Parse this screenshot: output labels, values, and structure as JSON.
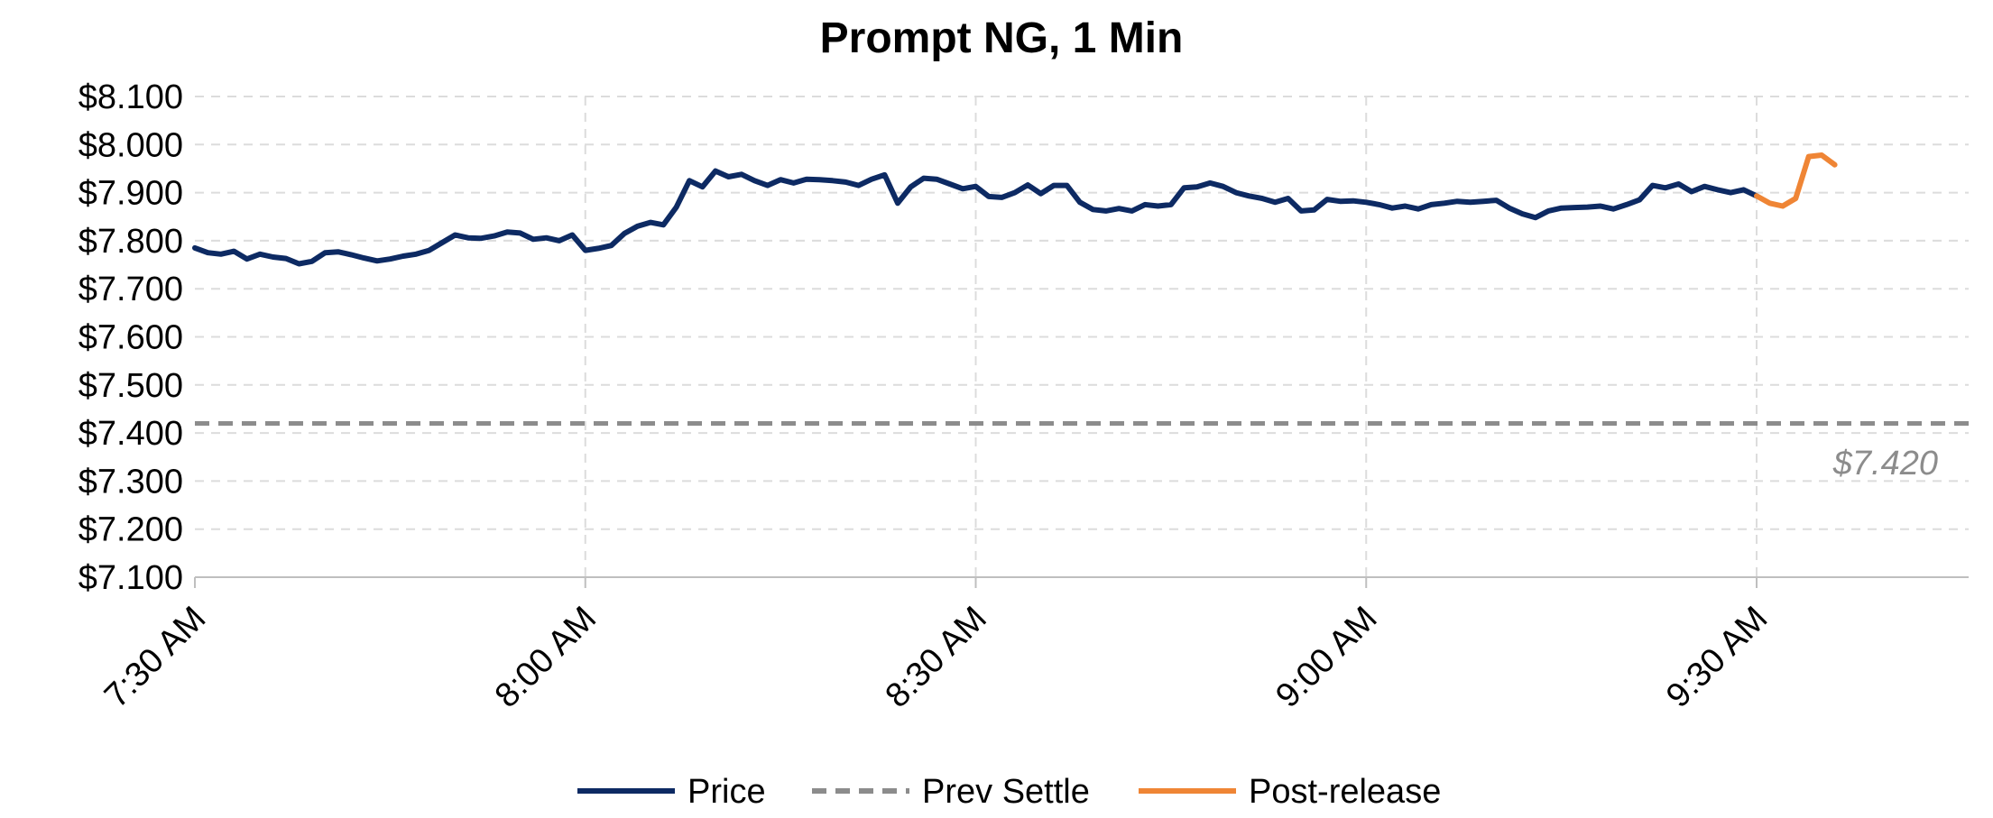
{
  "chart_data": {
    "type": "line",
    "title": "Prompt NG, 1 Min",
    "xlabel": "",
    "ylabel": "",
    "ylim": [
      7.1,
      8.1
    ],
    "y_ticks": [
      "$7.100",
      "$7.200",
      "$7.300",
      "$7.400",
      "$7.500",
      "$7.600",
      "$7.700",
      "$7.800",
      "$7.900",
      "$8.000",
      "$8.100"
    ],
    "x_range_minutes": [
      0,
      136
    ],
    "x_ticks": [
      {
        "minute": 0,
        "label": "7:30 AM"
      },
      {
        "minute": 30,
        "label": "8:00 AM"
      },
      {
        "minute": 60,
        "label": "8:30 AM"
      },
      {
        "minute": 90,
        "label": "9:00 AM"
      },
      {
        "minute": 120,
        "label": "9:30 AM"
      }
    ],
    "grid": true,
    "legend_position": "bottom",
    "series": [
      {
        "name": "Price",
        "color": "#0d2a63",
        "style": "solid",
        "start_minute": 0,
        "values": [
          7.785,
          7.775,
          7.772,
          7.778,
          7.762,
          7.772,
          7.766,
          7.763,
          7.752,
          7.757,
          7.775,
          7.777,
          7.771,
          7.764,
          7.758,
          7.762,
          7.768,
          7.772,
          7.78,
          7.796,
          7.812,
          7.806,
          7.805,
          7.81,
          7.818,
          7.816,
          7.803,
          7.806,
          7.8,
          7.812,
          7.78,
          7.784,
          7.79,
          7.815,
          7.83,
          7.838,
          7.833,
          7.87,
          7.925,
          7.912,
          7.945,
          7.933,
          7.938,
          7.925,
          7.915,
          7.927,
          7.92,
          7.928,
          7.927,
          7.925,
          7.922,
          7.915,
          7.928,
          7.937,
          7.878,
          7.912,
          7.93,
          7.928,
          7.918,
          7.908,
          7.913,
          7.892,
          7.89,
          7.9,
          7.916,
          7.898,
          7.915,
          7.915,
          7.88,
          7.865,
          7.862,
          7.867,
          7.862,
          7.875,
          7.872,
          7.875,
          7.91,
          7.912,
          7.92,
          7.913,
          7.9,
          7.893,
          7.888,
          7.88,
          7.888,
          7.862,
          7.864,
          7.886,
          7.882,
          7.883,
          7.88,
          7.875,
          7.868,
          7.872,
          7.866,
          7.875,
          7.878,
          7.882,
          7.88,
          7.882,
          7.884,
          7.868,
          7.856,
          7.848,
          7.862,
          7.868,
          7.869,
          7.87,
          7.872,
          7.866,
          7.875,
          7.885,
          7.915,
          7.91,
          7.918,
          7.902,
          7.913,
          7.906,
          7.9,
          7.906,
          7.893
        ]
      },
      {
        "name": "Prev Settle",
        "color": "#8c8c8c",
        "style": "dashed",
        "constant": 7.42,
        "label": "$7.420"
      },
      {
        "name": "Post-release",
        "color": "#ef8535",
        "style": "solid",
        "start_minute": 120,
        "values": [
          7.893,
          7.878,
          7.872,
          7.888,
          7.975,
          7.978,
          7.958
        ]
      }
    ]
  }
}
